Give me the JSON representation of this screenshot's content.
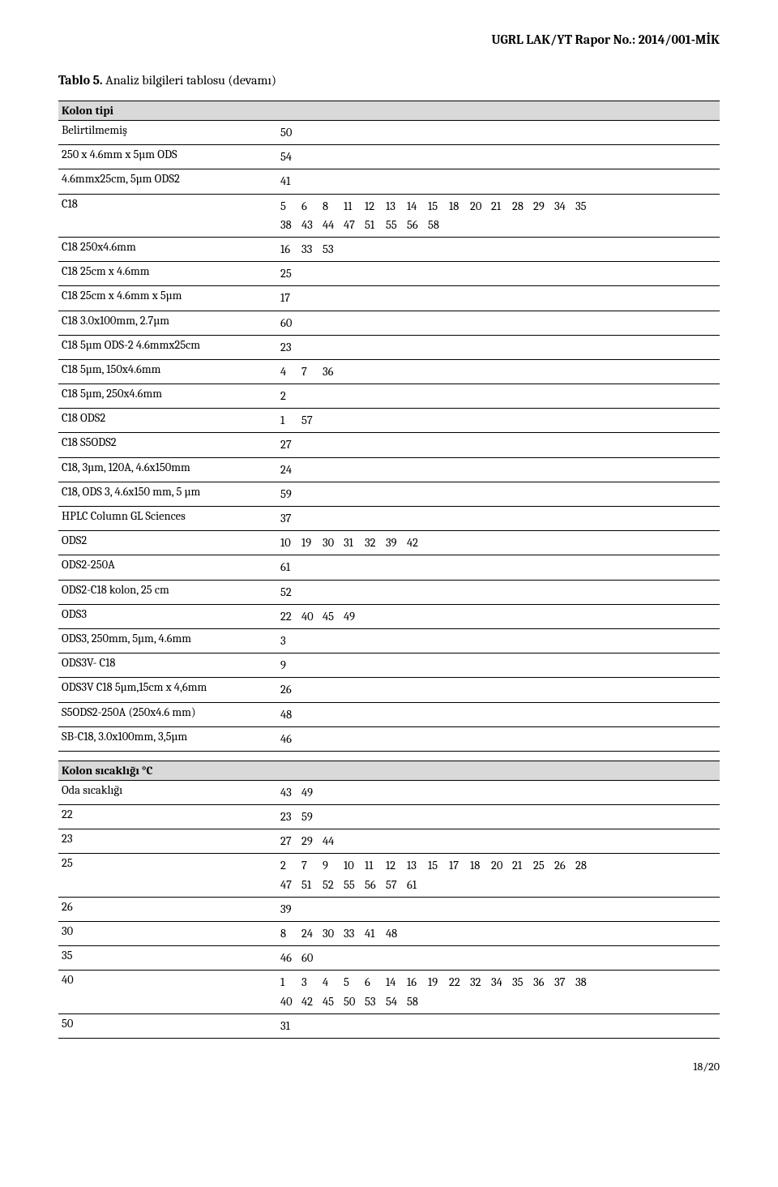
{
  "header": {
    "report_no": "UGRL LAK/YT Rapor No.: 2014/001-MİK"
  },
  "caption": {
    "bold": "Tablo 5.",
    "rest": " Analiz bilgileri tablosu (devamı)"
  },
  "sections": [
    {
      "title": "Kolon tipi",
      "rows": [
        {
          "label": "Belirtilmemiş",
          "values": [
            50
          ]
        },
        {
          "label": "250 x 4.6mm x 5µm ODS",
          "values": [
            54
          ]
        },
        {
          "label": "4.6mmx25cm, 5µm ODS2",
          "values": [
            41
          ]
        },
        {
          "label": "C18",
          "values": [
            5,
            6,
            8,
            11,
            12,
            13,
            14,
            15,
            18,
            20,
            21,
            28,
            29,
            34,
            35,
            38,
            43,
            44,
            47,
            51,
            55,
            56,
            58
          ]
        },
        {
          "label": "C18 250x4.6mm",
          "values": [
            16,
            33,
            53
          ]
        },
        {
          "label": "C18 25cm x 4.6mm",
          "values": [
            25
          ]
        },
        {
          "label": "C18 25cm x 4.6mm x 5µm",
          "values": [
            17
          ]
        },
        {
          "label": "C18 3.0x100mm, 2.7µm",
          "values": [
            60
          ]
        },
        {
          "label": "C18 5µm ODS-2 4.6mmx25cm",
          "values": [
            23
          ]
        },
        {
          "label": "C18 5µm, 150x4.6mm",
          "values": [
            4,
            7,
            36
          ]
        },
        {
          "label": "C18 5µm, 250x4.6mm",
          "values": [
            2
          ]
        },
        {
          "label": "C18 ODS2",
          "values": [
            1,
            57
          ]
        },
        {
          "label": "C18 S5ODS2",
          "values": [
            27
          ]
        },
        {
          "label": "C18, 3µm, 120A, 4.6x150mm",
          "values": [
            24
          ]
        },
        {
          "label": "C18, ODS 3, 4.6x150 mm, 5 µm",
          "values": [
            59
          ]
        },
        {
          "label": "HPLC Column GL Sciences",
          "values": [
            37
          ]
        },
        {
          "label": "ODS2",
          "values": [
            10,
            19,
            30,
            31,
            32,
            39,
            42
          ]
        },
        {
          "label": "ODS2-250A",
          "values": [
            61
          ]
        },
        {
          "label": "ODS2-C18 kolon, 25 cm",
          "values": [
            52
          ]
        },
        {
          "label": "ODS3",
          "values": [
            22,
            40,
            45,
            49
          ]
        },
        {
          "label": "ODS3, 250mm, 5µm, 4.6mm",
          "values": [
            3
          ]
        },
        {
          "label": "ODS3V- C18",
          "values": [
            9
          ]
        },
        {
          "label": "ODS3V C18 5µm,15cm x 4,6mm",
          "values": [
            26
          ]
        },
        {
          "label": "S5ODS2-250A (250x4.6 mm)",
          "values": [
            48
          ]
        },
        {
          "label": "SB-C18, 3.0x100mm, 3,5µm",
          "values": [
            46
          ]
        }
      ]
    },
    {
      "title": "Kolon sıcaklığı °C",
      "rows": [
        {
          "label": "Oda sıcaklığı",
          "values": [
            43,
            49
          ]
        },
        {
          "label": "22",
          "values": [
            23,
            59
          ]
        },
        {
          "label": "23",
          "values": [
            27,
            29,
            44
          ]
        },
        {
          "label": "25",
          "values": [
            2,
            7,
            9,
            10,
            11,
            12,
            13,
            15,
            17,
            18,
            20,
            21,
            25,
            26,
            28,
            47,
            51,
            52,
            55,
            56,
            57,
            61
          ]
        },
        {
          "label": "26",
          "values": [
            39
          ]
        },
        {
          "label": "30",
          "values": [
            8,
            24,
            30,
            33,
            41,
            48
          ]
        },
        {
          "label": "35",
          "values": [
            46,
            60
          ]
        },
        {
          "label": "40",
          "values": [
            1,
            3,
            4,
            5,
            6,
            14,
            16,
            19,
            22,
            32,
            34,
            35,
            36,
            37,
            38,
            40,
            42,
            45,
            50,
            53,
            54,
            58
          ]
        },
        {
          "label": "50",
          "values": [
            31
          ]
        }
      ]
    }
  ],
  "footer": {
    "page": "18/20"
  }
}
